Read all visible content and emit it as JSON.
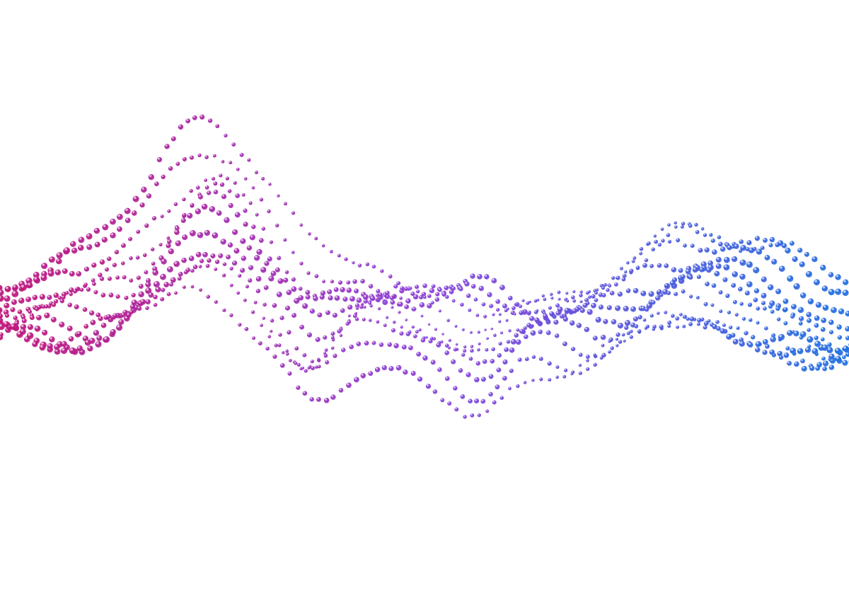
{
  "artwork": {
    "subject": "particle-wave",
    "background_color": "#ffffff",
    "gradient_colors": {
      "left": "#c0157a",
      "middle": "#8a3fd8",
      "right": "#1f6fe0"
    },
    "highlight_color": "#ffffff"
  }
}
